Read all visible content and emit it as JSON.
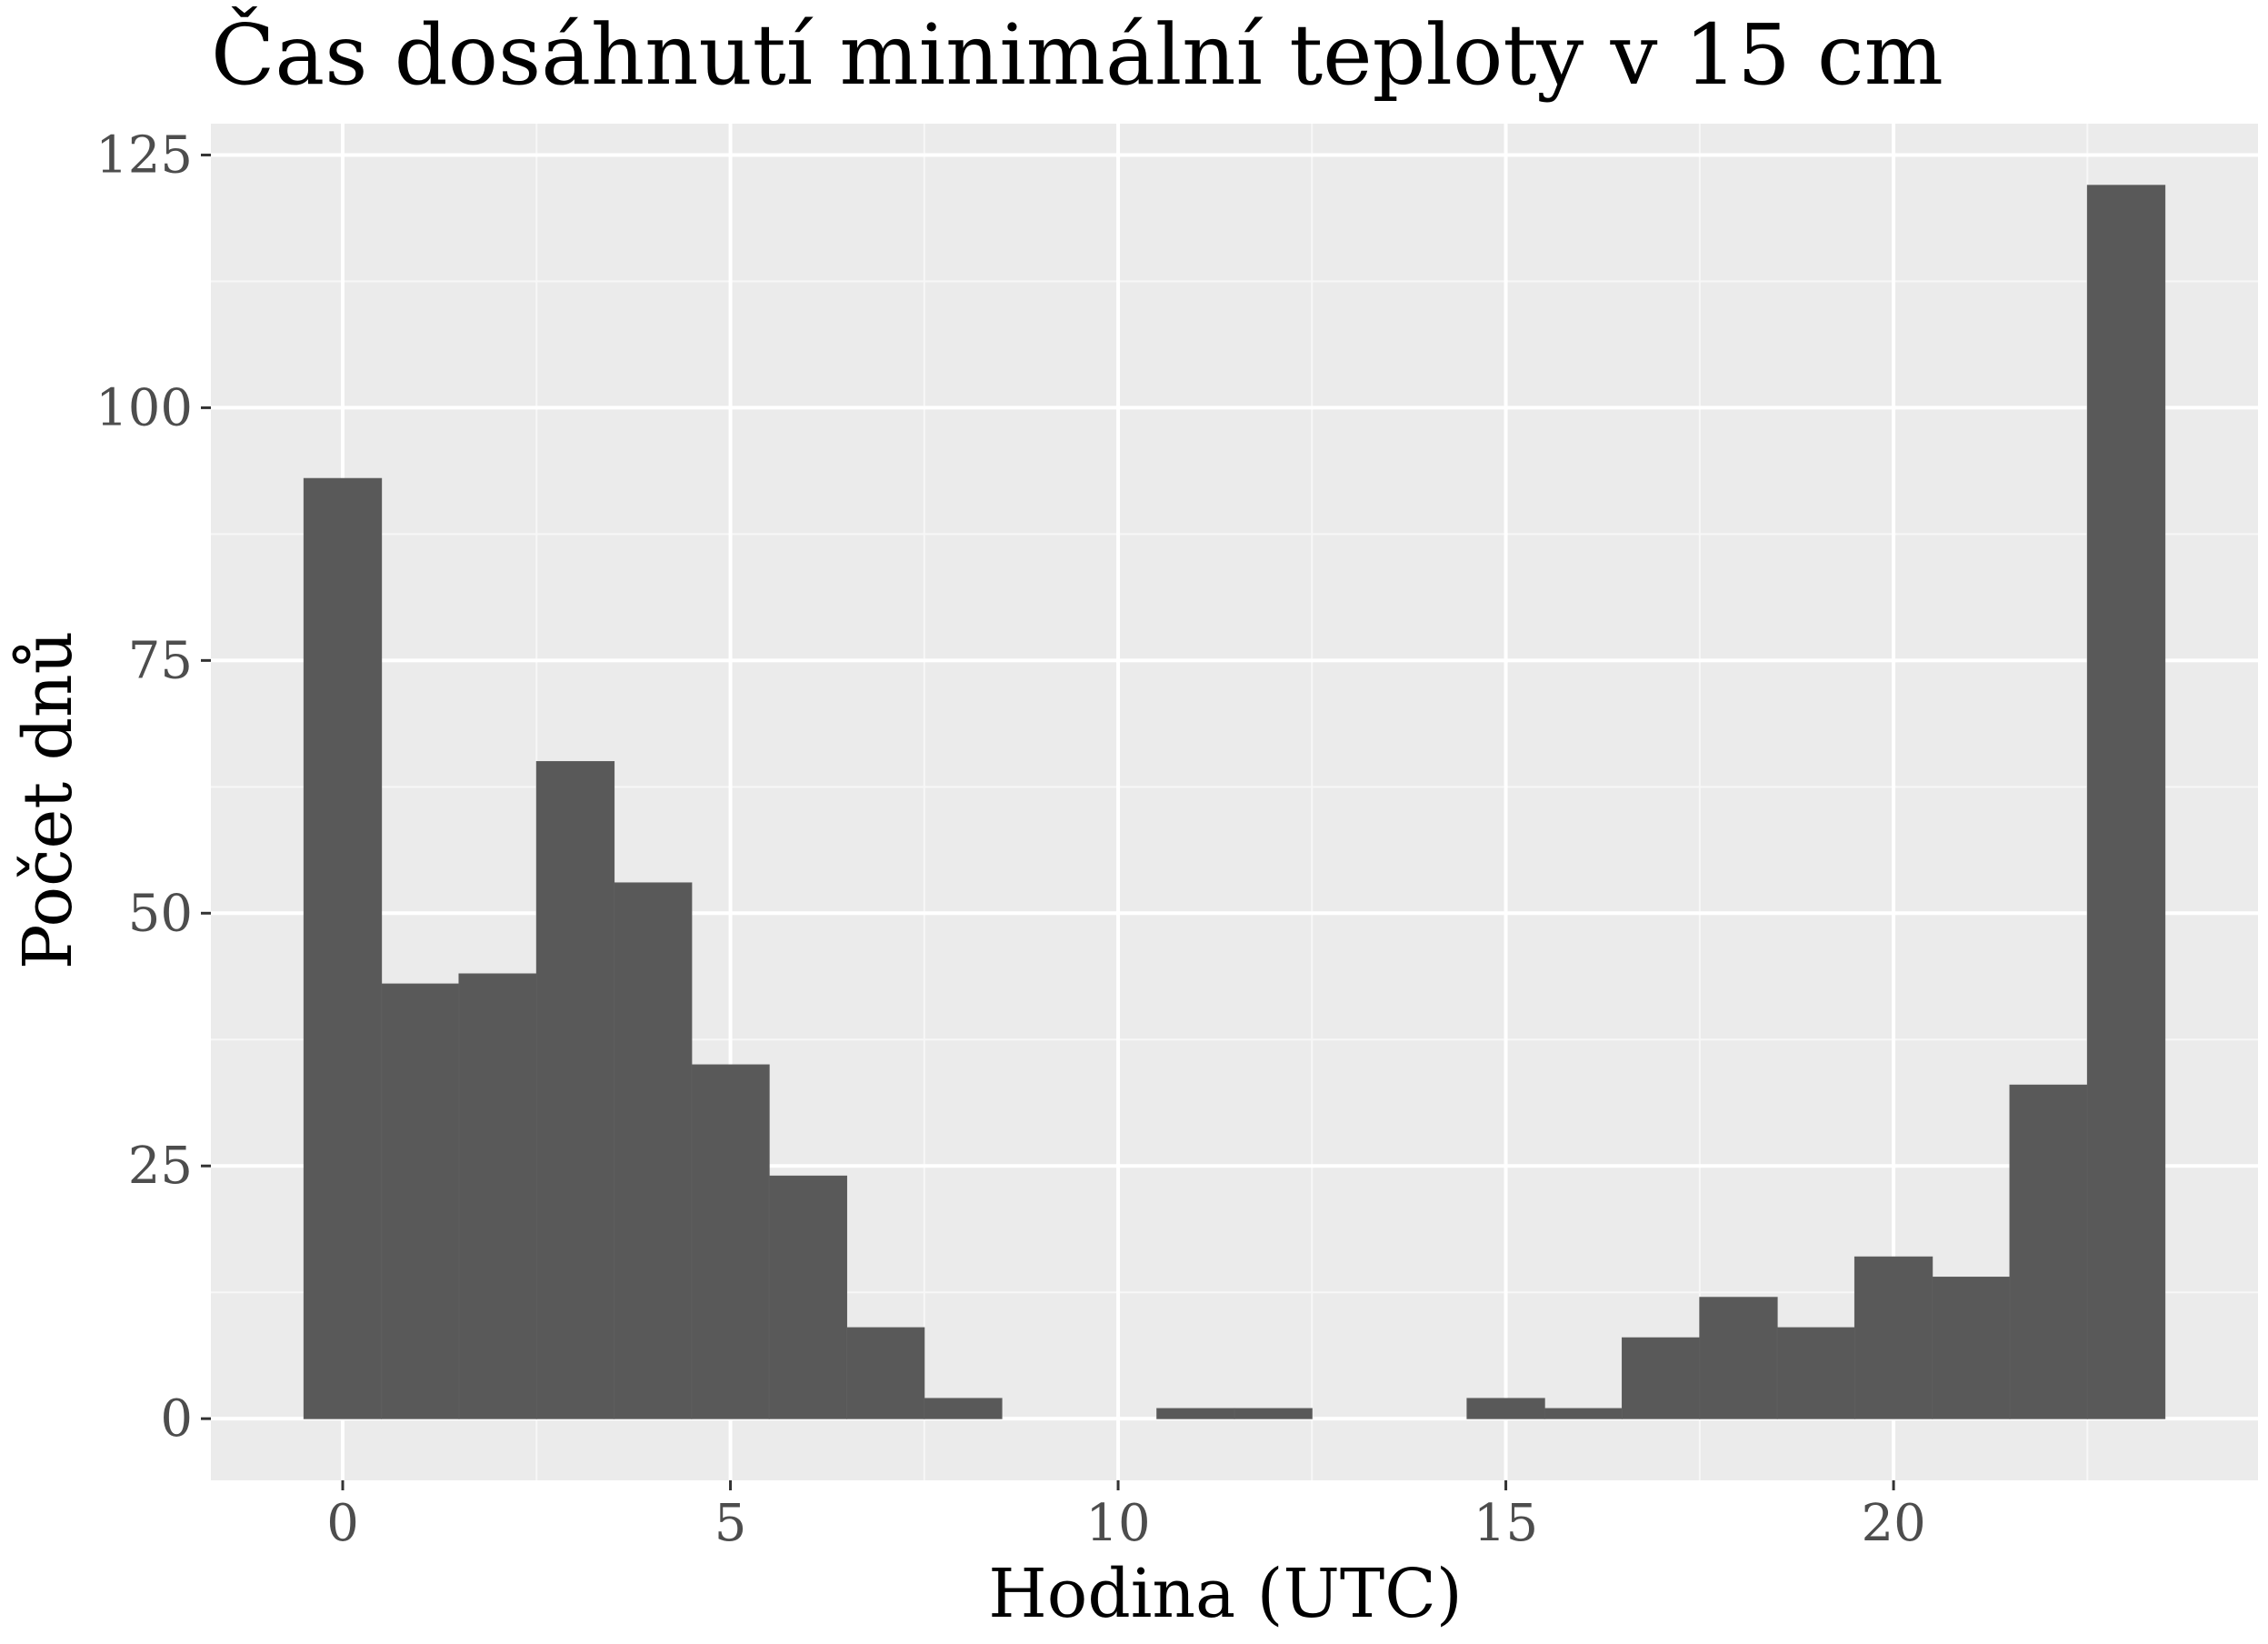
{
  "chart_data": {
    "type": "bar",
    "title": "Čas dosáhnutí minimální teploty v 15 cm",
    "xlabel": "Hodina (UTC)",
    "ylabel": "Počet dnů",
    "xlim": [
      -1.7,
      24.7
    ],
    "ylim": [
      -6.1,
      128.1
    ],
    "xticks": [
      0,
      5,
      10,
      15,
      20
    ],
    "yticks": [
      0,
      25,
      50,
      75,
      100,
      125
    ],
    "xminor": [
      2.5,
      7.5,
      12.5,
      17.5,
      22.5
    ],
    "yminor": [
      12.5,
      37.5,
      62.5,
      87.5,
      112.5
    ],
    "bin_width": 1,
    "bins": [
      0,
      1,
      2,
      3,
      4,
      5,
      6,
      7,
      8,
      9,
      10,
      11,
      12,
      13,
      14,
      15,
      16,
      17,
      18,
      19,
      20,
      21,
      22,
      23
    ],
    "values": [
      93,
      43,
      44,
      65,
      53,
      35,
      24,
      9,
      2,
      0,
      0,
      1,
      1,
      0,
      0,
      2,
      1,
      8,
      12,
      9,
      16,
      14,
      33,
      122
    ],
    "grid": true,
    "colors": {
      "panel": "#ebebeb",
      "grid_major": "#ffffff",
      "grid_minor": "#f7f7f7",
      "bar": "#595959",
      "tick": "#333333",
      "tick_label": "#4d4d4d"
    }
  }
}
